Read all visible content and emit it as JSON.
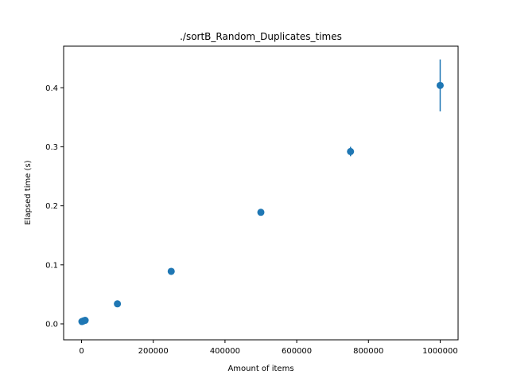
{
  "chart_data": {
    "type": "scatter",
    "title": "./sortB_Random_Duplicates_times",
    "xlabel": "Amount of items",
    "ylabel": "Elapsed time (s)",
    "xlim": [
      -50000,
      1050000
    ],
    "ylim": [
      -0.027,
      0.4705
    ],
    "x_ticks": [
      0,
      200000,
      400000,
      600000,
      800000,
      1000000
    ],
    "x_tick_labels": [
      "0",
      "200000",
      "400000",
      "600000",
      "800000",
      "1000000"
    ],
    "y_ticks": [
      0.0,
      0.1,
      0.2,
      0.3,
      0.4
    ],
    "y_tick_labels": [
      "0.0",
      "0.1",
      "0.2",
      "0.3",
      "0.4"
    ],
    "grid": false,
    "legend": "none",
    "marker_color": "#1f77b4",
    "series": [
      {
        "x": [
          1000,
          5000,
          10000,
          100000,
          250000,
          500000,
          750000,
          1000000
        ],
        "y": [
          0.004,
          0.005,
          0.006,
          0.034,
          0.089,
          0.189,
          0.292,
          0.404
        ],
        "yerr": [
          0.0005,
          0.0005,
          0.0005,
          0.001,
          0.001,
          0.003,
          0.008,
          0.044
        ]
      }
    ]
  }
}
